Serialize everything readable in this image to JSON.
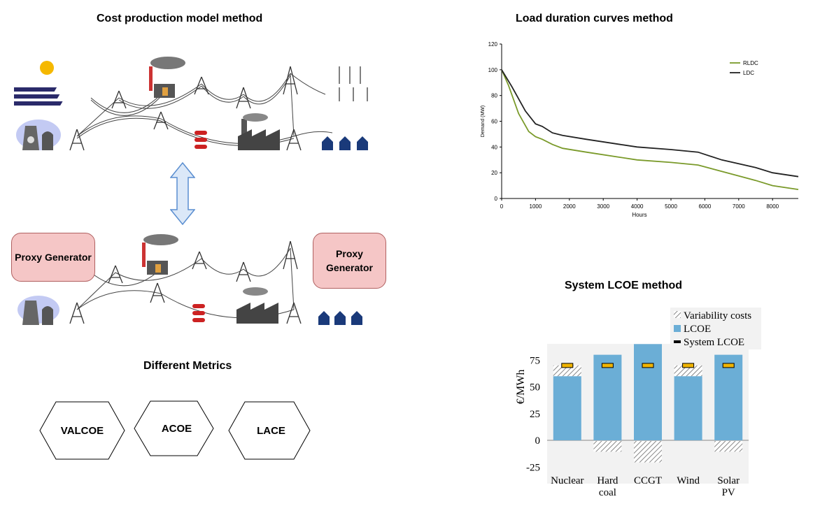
{
  "titles": {
    "cost": "Cost production model method",
    "ldc": "Load duration curves method",
    "slcoe": "System LCOE method",
    "metrics": "Different Metrics"
  },
  "proxy": {
    "left": "Proxy Generator",
    "right": "Proxy\nGenerator"
  },
  "metrics": [
    "VALCOE",
    "ACOE",
    "LACE"
  ],
  "colors": {
    "proxy_fill": "#f5c6c6",
    "arrow_fill": "#dbe8f8",
    "rldc": "#7a9a2a",
    "ldc": "#222222",
    "lcoe_bar": "#6baed6",
    "system_lcoe": "#f0b400"
  },
  "chart_data": [
    {
      "type": "line",
      "title": "",
      "xlabel": "Hours",
      "ylabel": "Demand (MW)",
      "xlim": [
        0,
        8760
      ],
      "ylim": [
        0,
        120
      ],
      "xticks": [
        0,
        1000,
        2000,
        3000,
        4000,
        5000,
        6000,
        7000,
        8000
      ],
      "yticks": [
        0,
        20,
        40,
        60,
        80,
        100,
        120
      ],
      "legend": "top-right",
      "series": [
        {
          "name": "RLDC",
          "color": "#7a9a2a",
          "x": [
            0,
            200,
            500,
            800,
            1000,
            1200,
            1500,
            1800,
            2500,
            3500,
            4000,
            5000,
            5800,
            6500,
            7500,
            8000,
            8760
          ],
          "y": [
            100,
            88,
            66,
            52,
            48,
            46,
            42,
            39,
            36,
            32,
            30,
            28,
            26,
            21,
            14,
            10,
            7
          ]
        },
        {
          "name": "LDC",
          "color": "#222222",
          "x": [
            0,
            300,
            700,
            1000,
            1200,
            1500,
            1800,
            2500,
            3500,
            4000,
            5000,
            5800,
            6500,
            7500,
            8000,
            8760
          ],
          "y": [
            100,
            87,
            68,
            58,
            56,
            51,
            49,
            46,
            42,
            40,
            38,
            36,
            30,
            24,
            20,
            17
          ]
        }
      ]
    },
    {
      "type": "bar",
      "title": "",
      "ylabel": "€/MWh",
      "ylim": [
        -25,
        75
      ],
      "yticks": [
        -25,
        0,
        25,
        50,
        75
      ],
      "legend_labels": [
        "Variability costs",
        "LCOE",
        "System LCOE"
      ],
      "categories": [
        "Nuclear",
        "Hard coal",
        "CCGT",
        "Wind",
        "Solar PV"
      ],
      "category_lines": [
        [
          "Nuclear"
        ],
        [
          "Hard",
          "coal"
        ],
        [
          "CCGT"
        ],
        [
          "Wind"
        ],
        [
          "Solar",
          "PV"
        ]
      ],
      "lcoe": [
        60,
        80,
        90,
        60,
        80
      ],
      "variability_costs": [
        10,
        -10,
        -20,
        10,
        -10
      ],
      "system_lcoe": [
        70,
        70,
        70,
        70,
        70
      ]
    }
  ]
}
